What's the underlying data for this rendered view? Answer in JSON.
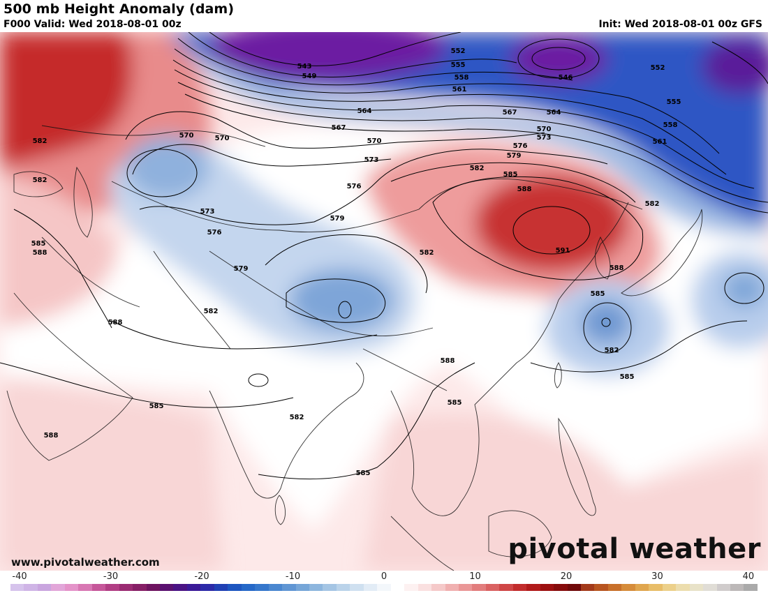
{
  "header": {
    "title": "500 mb Height Anomaly (dam)",
    "valid": "F000 Valid: Wed 2018-08-01 00z",
    "init": "Init: Wed 2018-08-01 00z GFS"
  },
  "footer": {
    "website": "www.pivotalweather.com",
    "brand": "pivotal weather"
  },
  "colorbar": {
    "ticks": [
      "-40",
      "-30",
      "-20",
      "-10",
      "0",
      "10",
      "20",
      "30",
      "40"
    ],
    "tick_values": [
      -40,
      -30,
      -20,
      -10,
      0,
      10,
      20,
      30,
      40
    ],
    "min": -41,
    "max": 41,
    "colors": [
      "#d6c3ec",
      "#cfb4e6",
      "#c9a5df",
      "#e2a6d9",
      "#e493c9",
      "#d877b3",
      "#c6579a",
      "#b13e84",
      "#9a2b72",
      "#861f66",
      "#6e1460",
      "#5a1170",
      "#4a1384",
      "#3a1a98",
      "#2c2aa8",
      "#2040b4",
      "#1d56c0",
      "#2568c8",
      "#3577cc",
      "#4a87d0",
      "#6096d4",
      "#76a6d8",
      "#8db6de",
      "#a4c5e4",
      "#bad3ea",
      "#cfe0f0",
      "#e2ecf6",
      "#f3f7fb",
      "#ffffff",
      "#fdf1f1",
      "#fae0e0",
      "#f5c9c9",
      "#f0b0b0",
      "#ea9797",
      "#e27d7d",
      "#da6262",
      "#cf4646",
      "#c22c2c",
      "#b11a1a",
      "#9c1010",
      "#860c0c",
      "#700a0a",
      "#a33a1a",
      "#b85520",
      "#c8702a",
      "#d68c3a",
      "#e0a64e",
      "#e8bd68",
      "#ecd08a",
      "#ecddad",
      "#e8e2c8",
      "#e0ddd6",
      "#d0cccc",
      "#bcb8b8",
      "#aaaaaa"
    ]
  },
  "anomaly_colors": {
    "red_strong": "#c42424",
    "red_mid": "#e37373",
    "red_light": "#f4c3c3",
    "pink_faint": "#f9e0e0",
    "blue_faint": "#dde9f5",
    "blue_light": "#b7cfea",
    "blue_mid": "#7ea6d8",
    "blue_strong": "#1f4fc0",
    "purple_strong": "#6a1aa0"
  },
  "contour_labels": [
    "543",
    "549",
    "552",
    "555",
    "558",
    "561",
    "564",
    "567",
    "564",
    "546",
    "552",
    "555",
    "558",
    "561",
    "570",
    "570",
    "567",
    "570",
    "573",
    "576",
    "570",
    "573",
    "576",
    "579",
    "582",
    "585",
    "588",
    "582",
    "582",
    "582",
    "576",
    "573",
    "579",
    "579",
    "582",
    "582",
    "591",
    "588",
    "585",
    "582",
    "585",
    "588",
    "585",
    "585",
    "582",
    "585",
    "588",
    "588",
    "585",
    "588"
  ]
}
